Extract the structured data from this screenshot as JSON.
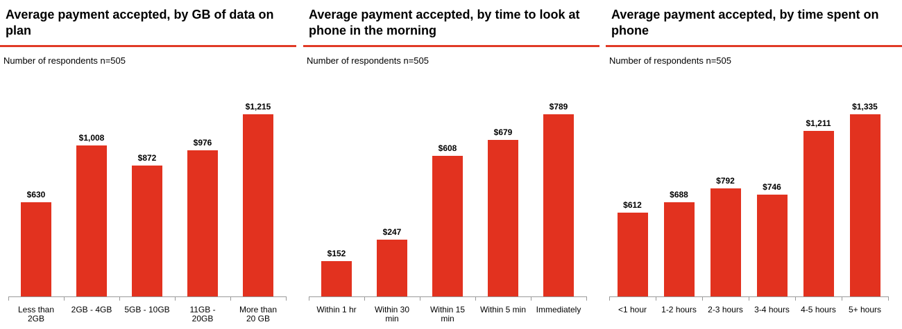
{
  "chart_data": [
    {
      "type": "bar",
      "title": "Average payment accepted, by GB of data on plan",
      "subtitle": "Number of respondents n=505",
      "color": "#e2321f",
      "categories": [
        "Less than 2GB",
        "2GB - 4GB",
        "5GB - 10GB",
        "11GB - 20GB",
        "More than 20 GB"
      ],
      "values": [
        630,
        1008,
        872,
        976,
        1215
      ],
      "value_labels": [
        "$630",
        "$1,008",
        "$872",
        "$976",
        "$1,215"
      ]
    },
    {
      "type": "bar",
      "title": "Average payment accepted, by time to look at phone in the morning",
      "subtitle": "Number of respondents n=505",
      "color": "#e2321f",
      "categories": [
        "Within 1 hr",
        "Within 30 min",
        "Within 15 min",
        "Within 5 min",
        "Immediately"
      ],
      "values": [
        152,
        247,
        608,
        679,
        789
      ],
      "value_labels": [
        "$152",
        "$247",
        "$608",
        "$679",
        "$789"
      ]
    },
    {
      "type": "bar",
      "title": "Average payment accepted, by time spent on phone",
      "subtitle": "Number of respondents n=505",
      "color": "#e2321f",
      "categories": [
        "<1 hour",
        "1-2 hours",
        "2-3 hours",
        "3-4 hours",
        "4-5 hours",
        "5+ hours"
      ],
      "values": [
        612,
        688,
        792,
        746,
        1211,
        1335
      ],
      "value_labels": [
        "$612",
        "$688",
        "$792",
        "$746",
        "$1,211",
        "$1,335"
      ]
    }
  ]
}
